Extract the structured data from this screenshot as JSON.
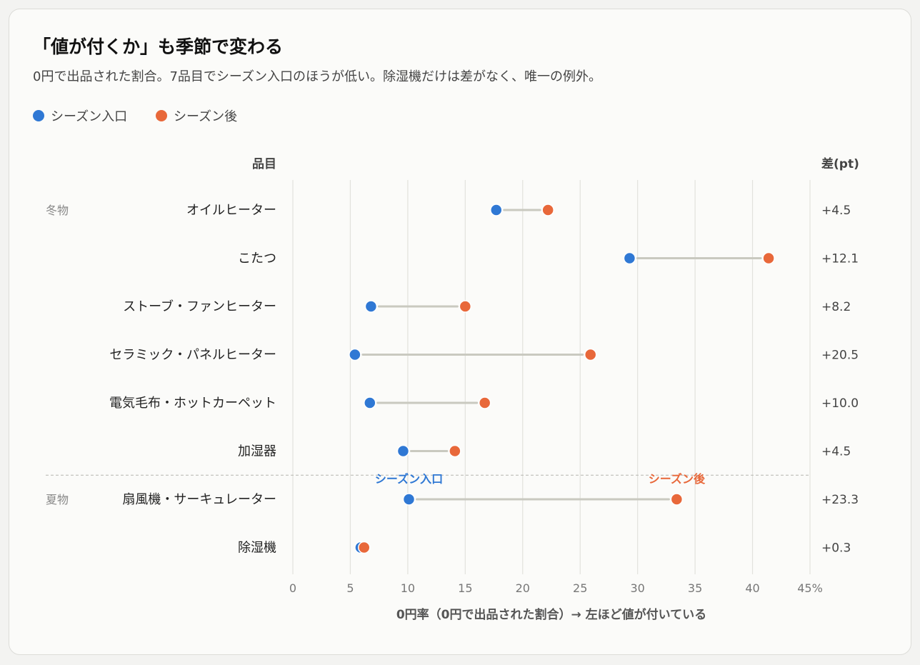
{
  "title": "「値が付くか」も季節で変わる",
  "subtitle": "0円で出品された割合。7品目でシーズン入口のほうが低い。除湿機だけは差がなく、唯一の例外。",
  "colors": {
    "entry": "#2f78d4",
    "after": "#e8683a",
    "connector": "#c9c9c0",
    "grid": "#e2e2dd"
  },
  "legend": [
    {
      "label": "シーズン入口",
      "color": "#2f78d4"
    },
    {
      "label": "シーズン後",
      "color": "#e8683a"
    }
  ],
  "chart_data": {
    "type": "dumbbell",
    "column_headers": {
      "item": "品目",
      "diff": "差(pt)"
    },
    "xlabel": "0円率（0円で出品された割合）→ 左ほど値が付いている",
    "xlim": [
      0,
      45
    ],
    "x_ticks": [
      "0",
      "5",
      "10",
      "15",
      "20",
      "25",
      "30",
      "35",
      "40",
      "45%"
    ],
    "grid": true,
    "groups": [
      {
        "name": "冬物",
        "items": [
          "オイルヒーター",
          "こたつ",
          "ストーブ・ファンヒーター",
          "セラミック・パネルヒーター",
          "電気毛布・ホットカーペット",
          "加湿器"
        ]
      },
      {
        "name": "夏物",
        "items": [
          "扇風機・サーキュレーター",
          "除湿機"
        ]
      }
    ],
    "series_names": [
      "シーズン入口",
      "シーズン後"
    ],
    "rows": [
      {
        "item": "オイルヒーター",
        "entry": 17.7,
        "after": 22.2,
        "diff": "+4.5"
      },
      {
        "item": "こたつ",
        "entry": 29.3,
        "after": 41.4,
        "diff": "+12.1"
      },
      {
        "item": "ストーブ・ファンヒーター",
        "entry": 6.8,
        "after": 15.0,
        "diff": "+8.2"
      },
      {
        "item": "セラミック・パネルヒーター",
        "entry": 5.4,
        "after": 25.9,
        "diff": "+20.5"
      },
      {
        "item": "電気毛布・ホットカーペット",
        "entry": 6.7,
        "after": 16.7,
        "diff": "+10.0"
      },
      {
        "item": "加湿器",
        "entry": 9.6,
        "after": 14.1,
        "diff": "+4.5"
      },
      {
        "item": "扇風機・サーキュレーター",
        "entry": 10.1,
        "after": 33.4,
        "diff": "+23.3"
      },
      {
        "item": "除湿機",
        "entry": 5.9,
        "after": 6.2,
        "diff": "+0.3"
      }
    ],
    "annotations": [
      {
        "row": "扇風機・サーキュレーター",
        "series": "entry",
        "text": "シーズン入口"
      },
      {
        "row": "扇風機・サーキュレーター",
        "series": "after",
        "text": "シーズン後"
      }
    ]
  }
}
